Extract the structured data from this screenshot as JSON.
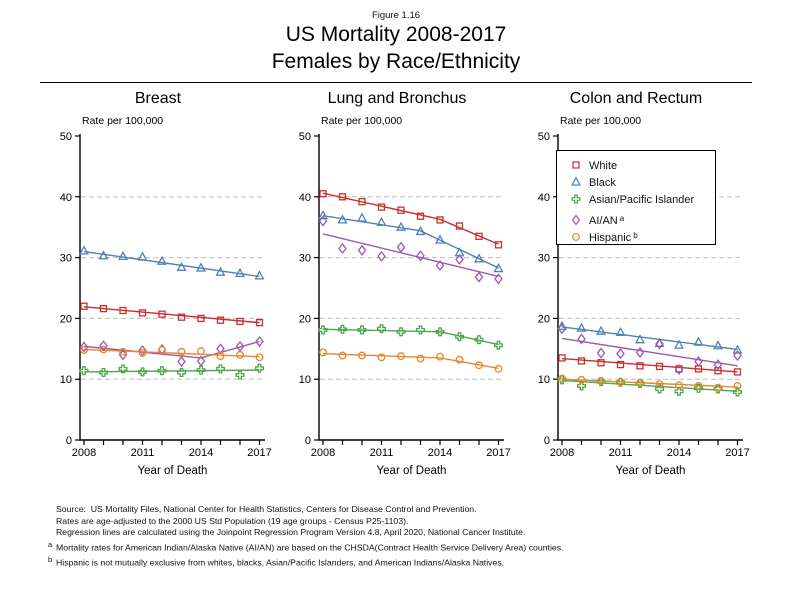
{
  "figure_label": "Figure 1.16",
  "title": {
    "line1": "US Mortality 2008-2017",
    "line2": "Females by Race/Ethnicity"
  },
  "colors": {
    "white_series": "#CB2D2D",
    "black_series": "#4F81B6",
    "api_series": "#4CA64C",
    "aian_series": "#9B59B0",
    "hispanic_series": "#E8862B",
    "gridline": "#BDBDBD",
    "axis": "#000000"
  },
  "legend": {
    "position": "inside-top-right-of-colon-panel",
    "items": [
      {
        "label": "White",
        "sup": "",
        "marker": "open-square",
        "color": "#CB2D2D"
      },
      {
        "label": "Black",
        "sup": "",
        "marker": "open-triangle",
        "color": "#4F81B6"
      },
      {
        "label": "Asian/Pacific Islander",
        "sup": "",
        "marker": "open-cross",
        "color": "#4CA64C"
      },
      {
        "label": "AI/AN",
        "sup": "a",
        "marker": "open-diamond",
        "color": "#9B59B0"
      },
      {
        "label": "Hispanic",
        "sup": "b",
        "marker": "open-circle",
        "color": "#E8862B"
      }
    ]
  },
  "chart_data": [
    {
      "type": "scatter",
      "title": "Breast",
      "ylabel": "Rate per 100,000",
      "xlabel": "Year of Death",
      "x": [
        2008,
        2009,
        2010,
        2011,
        2012,
        2013,
        2014,
        2015,
        2016,
        2017
      ],
      "xtick_labels": [
        2008,
        2011,
        2014,
        2017
      ],
      "ylim": [
        0,
        50
      ],
      "yticks": [
        0,
        10,
        20,
        30,
        40,
        50
      ],
      "gridlines": [
        10,
        20,
        30,
        40
      ],
      "series": [
        {
          "name": "White",
          "marker": "open-square",
          "color": "#CB2D2D",
          "values": [
            22.0,
            21.6,
            21.3,
            20.9,
            20.7,
            20.2,
            20.0,
            19.7,
            19.5,
            19.3
          ],
          "trend": [
            [
              2008,
              21.9
            ],
            [
              2017,
              19.3
            ]
          ]
        },
        {
          "name": "Black",
          "marker": "open-triangle",
          "color": "#4F81B6",
          "values": [
            31.1,
            30.3,
            30.2,
            30.1,
            29.4,
            28.4,
            28.3,
            27.6,
            27.4,
            27.0
          ],
          "trend": [
            [
              2008,
              31.0
            ],
            [
              2017,
              26.9
            ]
          ]
        },
        {
          "name": "Asian/Pacific Islander",
          "marker": "open-cross",
          "color": "#4CA64C",
          "values": [
            11.4,
            11.1,
            11.7,
            11.2,
            11.4,
            11.1,
            11.5,
            11.7,
            10.7,
            11.8
          ],
          "trend": [
            [
              2008,
              11.2
            ],
            [
              2017,
              11.5
            ]
          ]
        },
        {
          "name": "AI/AN",
          "marker": "open-diamond",
          "color": "#9B59B0",
          "values": [
            15.3,
            15.5,
            14.0,
            14.7,
            14.9,
            12.9,
            13.0,
            15.0,
            15.4,
            16.2
          ],
          "trend": [
            [
              2008,
              15.4
            ],
            [
              2014,
              13.5
            ],
            [
              2017,
              16.2
            ]
          ]
        },
        {
          "name": "Hispanic",
          "marker": "open-circle",
          "color": "#E8862B",
          "values": [
            14.8,
            14.9,
            14.5,
            14.3,
            14.8,
            14.5,
            14.6,
            13.8,
            14.0,
            13.6
          ],
          "trend": [
            [
              2008,
              14.9
            ],
            [
              2017,
              13.7
            ]
          ]
        }
      ]
    },
    {
      "type": "scatter",
      "title": "Lung and Bronchus",
      "ylabel": "Rate per 100,000",
      "xlabel": "Year of Death",
      "x": [
        2008,
        2009,
        2010,
        2011,
        2012,
        2013,
        2014,
        2015,
        2016,
        2017
      ],
      "xtick_labels": [
        2008,
        2011,
        2014,
        2017
      ],
      "ylim": [
        0,
        50
      ],
      "yticks": [
        0,
        10,
        20,
        30,
        40,
        50
      ],
      "gridlines": [
        10,
        20,
        30,
        40
      ],
      "series": [
        {
          "name": "White",
          "marker": "open-square",
          "color": "#CB2D2D",
          "values": [
            40.5,
            40.0,
            39.2,
            38.3,
            37.8,
            36.8,
            36.2,
            35.2,
            33.5,
            32.1
          ],
          "trend": [
            [
              2008,
              40.6
            ],
            [
              2014,
              36.3
            ],
            [
              2017,
              32.2
            ]
          ]
        },
        {
          "name": "Black",
          "marker": "open-triangle",
          "color": "#4F81B6",
          "values": [
            36.9,
            36.2,
            36.5,
            35.8,
            35.0,
            34.3,
            32.9,
            30.8,
            29.8,
            28.2
          ],
          "trend": [
            [
              2008,
              36.9
            ],
            [
              2013,
              34.4
            ],
            [
              2017,
              28.3
            ]
          ]
        },
        {
          "name": "Asian/Pacific Islander",
          "marker": "open-cross",
          "color": "#4CA64C",
          "values": [
            18.1,
            18.2,
            18.1,
            18.3,
            17.8,
            18.1,
            17.8,
            17.0,
            16.5,
            15.6
          ],
          "trend": [
            [
              2008,
              18.2
            ],
            [
              2014,
              17.8
            ],
            [
              2017,
              15.7
            ]
          ]
        },
        {
          "name": "AI/AN",
          "marker": "open-diamond",
          "color": "#9B59B0",
          "values": [
            36.0,
            31.5,
            31.2,
            30.2,
            31.7,
            30.3,
            28.7,
            29.7,
            26.8,
            26.5
          ],
          "trend": [
            [
              2008,
              33.9
            ],
            [
              2017,
              26.9
            ]
          ]
        },
        {
          "name": "Hispanic",
          "marker": "open-circle",
          "color": "#E8862B",
          "values": [
            14.4,
            13.9,
            13.9,
            13.6,
            13.8,
            13.4,
            13.7,
            13.2,
            12.3,
            11.7
          ],
          "trend": [
            [
              2008,
              14.2
            ],
            [
              2014,
              13.5
            ],
            [
              2017,
              11.8
            ]
          ]
        }
      ]
    },
    {
      "type": "scatter",
      "title": "Colon and Rectum",
      "ylabel": "Rate per 100,000",
      "xlabel": "Year of Death",
      "x": [
        2008,
        2009,
        2010,
        2011,
        2012,
        2013,
        2014,
        2015,
        2016,
        2017
      ],
      "xtick_labels": [
        2008,
        2011,
        2014,
        2017
      ],
      "ylim": [
        0,
        50
      ],
      "yticks": [
        0,
        10,
        20,
        30,
        40,
        50
      ],
      "gridlines": [
        10,
        20,
        30,
        40
      ],
      "series": [
        {
          "name": "White",
          "marker": "open-square",
          "color": "#CB2D2D",
          "values": [
            13.5,
            13.0,
            12.7,
            12.4,
            12.2,
            12.1,
            11.7,
            11.7,
            11.4,
            11.2
          ],
          "trend": [
            [
              2008,
              13.4
            ],
            [
              2017,
              11.2
            ]
          ]
        },
        {
          "name": "Black",
          "marker": "open-triangle",
          "color": "#4F81B6",
          "values": [
            18.7,
            18.4,
            17.9,
            17.7,
            16.5,
            15.9,
            15.6,
            16.1,
            15.5,
            14.8
          ],
          "trend": [
            [
              2008,
              18.6
            ],
            [
              2017,
              14.9
            ]
          ]
        },
        {
          "name": "Asian/Pacific Islander",
          "marker": "open-cross",
          "color": "#4CA64C",
          "values": [
            9.9,
            8.9,
            9.6,
            9.5,
            9.3,
            8.4,
            8.0,
            8.5,
            8.4,
            7.9
          ],
          "trend": [
            [
              2008,
              9.8
            ],
            [
              2017,
              8.0
            ]
          ]
        },
        {
          "name": "AI/AN",
          "marker": "open-diamond",
          "color": "#9B59B0",
          "values": [
            18.3,
            16.6,
            14.3,
            14.2,
            14.4,
            15.8,
            11.6,
            12.9,
            12.4,
            13.9
          ],
          "trend": [
            [
              2008,
              16.7
            ],
            [
              2017,
              12.2
            ]
          ]
        },
        {
          "name": "Hispanic",
          "marker": "open-circle",
          "color": "#E8862B",
          "values": [
            10.1,
            9.9,
            9.7,
            9.5,
            9.4,
            9.2,
            9.0,
            8.9,
            8.6,
            8.9
          ],
          "trend": [
            [
              2008,
              10.0
            ],
            [
              2017,
              8.7
            ]
          ]
        }
      ]
    }
  ],
  "footnotes": [
    {
      "sup": "",
      "text": "Source:  US Mortality Files, National Center for Health Statistics, Centers for Disease Control and Prevention."
    },
    {
      "sup": "",
      "text": "Rates are age-adjusted to the 2000 US Std Population (19 age groups - Census P25-1103)."
    },
    {
      "sup": "",
      "text": "Regression lines are calculated using the Joinpoint Regression Program Version 4.8, April 2020, National Cancer Institute."
    },
    {
      "sup": "a",
      "text": "Mortality rates for American Indian/Alaska Native (AI/AN) are based on the CHSDA(Contract Health Service Delivery Area) counties."
    },
    {
      "sup": "b",
      "text": "Hispanic is not mutually exclusive from whites, blacks, Asian/Pacific Islanders, and American Indians/Alaska Natives."
    }
  ]
}
